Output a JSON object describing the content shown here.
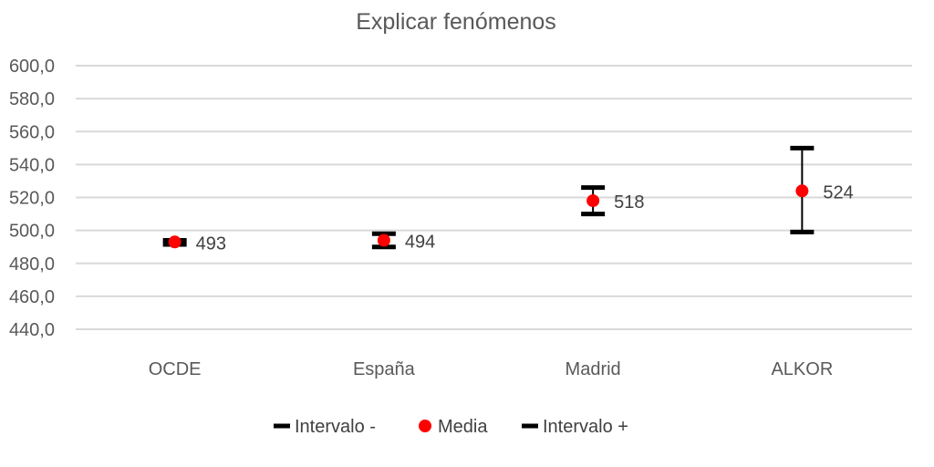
{
  "chart_data": {
    "type": "scatter",
    "title": "Explicar fenómenos",
    "categories": [
      "OCDE",
      "España",
      "Madrid",
      "ALKOR"
    ],
    "y_ticks": [
      "440,0",
      "460,0",
      "480,0",
      "500,0",
      "520,0",
      "540,0",
      "560,0",
      "580,0",
      "600,0"
    ],
    "ylim": [
      440,
      600
    ],
    "grid": true,
    "legend_position": "bottom",
    "series": [
      {
        "name": "Intervalo -",
        "marker": "dash",
        "color": "#000000",
        "values": [
          491.5,
          490,
          510,
          499
        ]
      },
      {
        "name": "Media",
        "marker": "circle",
        "color": "#ff0000",
        "values": [
          493,
          494,
          518,
          524
        ]
      },
      {
        "name": "Intervalo +",
        "marker": "dash",
        "color": "#000000",
        "values": [
          494,
          498,
          526,
          550
        ]
      }
    ],
    "data_labels": [
      "493",
      "494",
      "518",
      "524"
    ]
  }
}
